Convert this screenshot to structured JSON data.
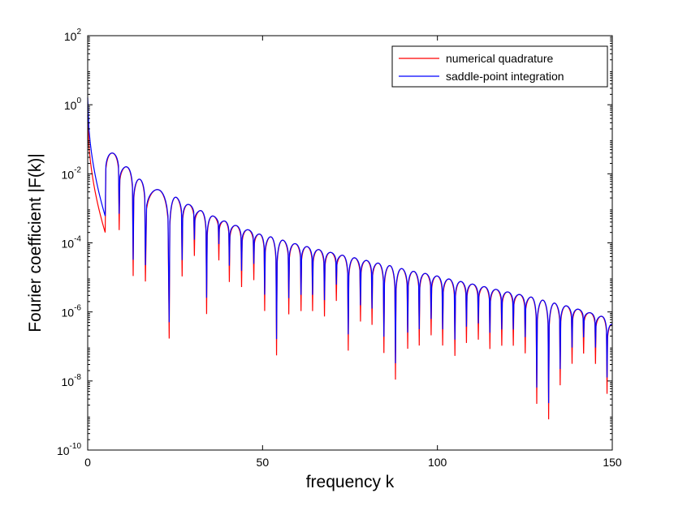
{
  "chart_data": {
    "type": "line",
    "xlabel": "frequency k",
    "ylabel": "Fourier coefficient |F(k)|",
    "xlim": [
      0,
      150
    ],
    "ylim": [
      1e-10,
      100
    ],
    "yscale": "log",
    "grid": false,
    "legend_position": "top-right",
    "x_ticks": [
      "0",
      "50",
      "100",
      "150"
    ],
    "x_tick_values": [
      0,
      50,
      100,
      150
    ],
    "y_tick_exponents": [
      2,
      0,
      -2,
      -4,
      -6,
      -8,
      -10
    ],
    "y_tick_base": "10",
    "series": [
      {
        "name": "numerical quadrature",
        "color": "#ff0000",
        "x": [
          0,
          5,
          9,
          13,
          16.5,
          23.3,
          27,
          30.5,
          34,
          37.5,
          40.5,
          44,
          47.5,
          50.6,
          54,
          57.5,
          61,
          64.3,
          67.7,
          71.1,
          74.5,
          78,
          81.3,
          84.7,
          88,
          91.5,
          94.8,
          98.2,
          101.5,
          105,
          108.3,
          111.7,
          115,
          118.4,
          121.7,
          125.1,
          128.4,
          131.8,
          135.1,
          138.5,
          141.8,
          145.2,
          148.5
        ],
        "y": [
          0.5,
          0.0002,
          0.00022,
          1e-05,
          7e-06,
          1.5e-07,
          1e-05,
          4e-05,
          8e-07,
          3e-05,
          7e-06,
          5e-06,
          8e-06,
          1e-06,
          5e-08,
          8e-07,
          1e-06,
          1e-06,
          7e-07,
          2e-06,
          7e-08,
          5e-07,
          4e-07,
          6e-08,
          1e-08,
          8e-08,
          1e-07,
          2e-07,
          1e-07,
          5e-08,
          1.2e-07,
          1.5e-07,
          8e-08,
          1e-07,
          1e-07,
          6e-08,
          2e-09,
          7e-10,
          7e-09,
          3e-08,
          6e-08,
          3e-08,
          4e-09
        ]
      },
      {
        "name": "saddle-point integration",
        "color": "#0000ff",
        "x": [
          0,
          7.1,
          10.9,
          14.5,
          18.1,
          21.6,
          25.1,
          28.6,
          32.1,
          35.6,
          39.1,
          42.6,
          46.1,
          49.5,
          52.9,
          56.3,
          59.7,
          63.1,
          66.5,
          69.9,
          73.3,
          76.7,
          80.1,
          83.5,
          86.9,
          90.3,
          93.7,
          97.1,
          100.5,
          103.9,
          107.3,
          110.7,
          114.1,
          117.5,
          120.9,
          124.3,
          127.7,
          131.1,
          134.5,
          137.9,
          141.3,
          144.7,
          148.1
        ],
        "y": [
          1.6,
          0.04,
          0.016,
          0.007,
          0.0035,
          0.0021,
          0.0013,
          0.00086,
          0.0006,
          0.00043,
          0.00032,
          0.00024,
          0.00018,
          0.00015,
          0.00012,
          9.5e-05,
          7.8e-05,
          6.4e-05,
          5.3e-05,
          4.4e-05,
          3.7e-05,
          3.1e-05,
          2.6e-05,
          2.2e-05,
          1.8e-05,
          1.5e-05,
          1.3e-05,
          1.1e-05,
          9e-06,
          7.6e-06,
          6.4e-06,
          5.4e-06,
          4.5e-06,
          3.8e-06,
          3.2e-06,
          2.7e-06,
          2.2e-06,
          1.8e-06,
          1.5e-06,
          1.2e-06,
          9.5e-07,
          7.5e-07,
          4.5e-07
        ]
      }
    ]
  }
}
